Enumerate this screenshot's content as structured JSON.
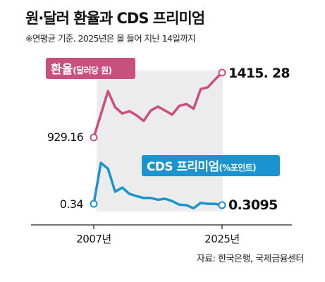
{
  "title": "원·달러 환율과 CDS 프리미엄",
  "subtitle": "※연평균 기준. 2025년은 올 들어 지난 14일까지",
  "source": "자료: 한국은행, 국제금융센터",
  "chart_data": [
    {
      "type": "line",
      "series": [
        {
          "name": "환율(달러당 원)",
          "color": "#c94f7c",
          "x": [
            2007,
            2008,
            2009,
            2010,
            2011,
            2012,
            2013,
            2014,
            2015,
            2016,
            2017,
            2018,
            2019,
            2020,
            2021,
            2022,
            2023,
            2024,
            2025
          ],
          "values": [
            929.16,
            1102.6,
            1276.4,
            1156.3,
            1108.1,
            1126.9,
            1095.0,
            1053.2,
            1131.5,
            1160.5,
            1130.5,
            1100.3,
            1165.7,
            1180.1,
            1144.4,
            1292.0,
            1305.4,
            1363.4,
            1415.28
          ],
          "start_label": "929.16",
          "end_label": "1415. 28"
        },
        {
          "name": "CDS 프리미엄(%포인트)",
          "color": "#1a93cf",
          "x": [
            2007,
            2008,
            2009,
            2010,
            2011,
            2012,
            2013,
            2014,
            2015,
            2016,
            2017,
            2018,
            2019,
            2020,
            2021,
            2022,
            2023,
            2024,
            2025
          ],
          "values": [
            0.34,
            1.25,
            1.12,
            0.61,
            0.7,
            0.56,
            0.51,
            0.47,
            0.47,
            0.43,
            0.45,
            0.4,
            0.32,
            0.31,
            0.24,
            0.36,
            0.34,
            0.34,
            0.3095
          ],
          "start_label": "0.34",
          "end_label": "0.3095"
        }
      ],
      "x_tick_labels": [
        "2007년",
        "2025년"
      ],
      "shaded_region": [
        2008,
        2025
      ]
    }
  ],
  "colors": {
    "exchange": "#c94f7c",
    "cds": "#1a93cf",
    "shade": "#ececec",
    "text": "#111111"
  }
}
